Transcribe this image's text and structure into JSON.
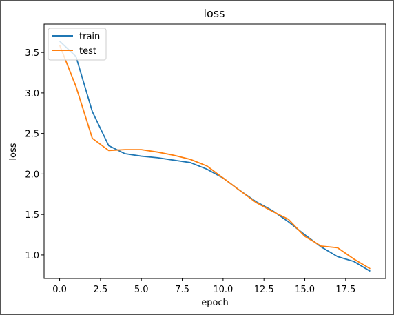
{
  "chart_data": {
    "type": "line",
    "title": "loss",
    "xlabel": "epoch",
    "ylabel": "loss",
    "xlim": [
      -0.95,
      19.95
    ],
    "ylim": [
      0.71,
      3.85
    ],
    "xticks": [
      0.0,
      2.5,
      5.0,
      7.5,
      10.0,
      12.5,
      15.0,
      17.5
    ],
    "xtick_labels": [
      "0.0",
      "2.5",
      "5.0",
      "7.5",
      "10.0",
      "12.5",
      "15.0",
      "17.5"
    ],
    "yticks": [
      1.0,
      1.5,
      2.0,
      2.5,
      3.0,
      3.5
    ],
    "ytick_labels": [
      "1.0",
      "1.5",
      "2.0",
      "2.5",
      "3.0",
      "3.5"
    ],
    "grid": false,
    "legend_position": "top-left",
    "x": [
      0,
      1,
      2,
      3,
      4,
      5,
      6,
      7,
      8,
      9,
      10,
      11,
      12,
      13,
      14,
      15,
      16,
      17,
      18,
      19
    ],
    "series": [
      {
        "name": "train",
        "color": "#1f77b4",
        "values": [
          3.64,
          3.45,
          2.77,
          2.35,
          2.25,
          2.22,
          2.2,
          2.17,
          2.14,
          2.06,
          1.95,
          1.8,
          1.66,
          1.55,
          1.41,
          1.25,
          1.1,
          0.98,
          0.92,
          0.8
        ]
      },
      {
        "name": "test",
        "color": "#ff7f0e",
        "values": [
          3.59,
          3.08,
          2.44,
          2.29,
          2.3,
          2.3,
          2.27,
          2.23,
          2.18,
          2.1,
          1.95,
          1.8,
          1.65,
          1.54,
          1.44,
          1.23,
          1.11,
          1.09,
          0.95,
          0.83
        ]
      }
    ]
  }
}
